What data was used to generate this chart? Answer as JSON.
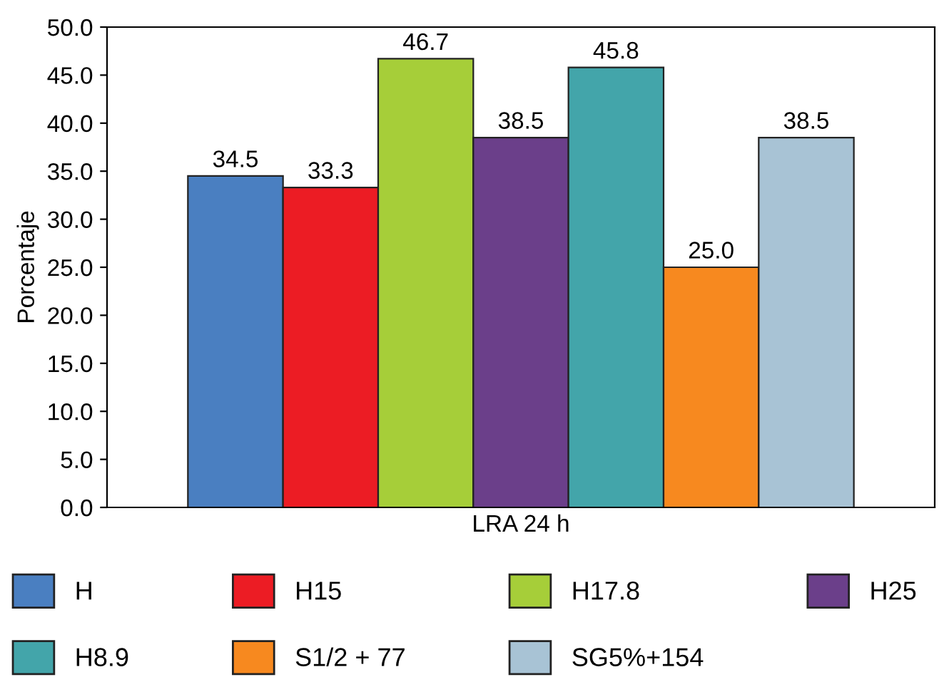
{
  "chart_data": {
    "type": "bar",
    "ylabel": "Porcentaje",
    "categories": [
      "LRA 24 h"
    ],
    "series": [
      {
        "name": "H",
        "color": "#4a7fc1",
        "values": [
          34.5
        ],
        "value_labels": [
          "34.5"
        ]
      },
      {
        "name": "H15",
        "color": "#ec1c24",
        "values": [
          33.3
        ],
        "value_labels": [
          "33.3"
        ]
      },
      {
        "name": "H17.8",
        "color": "#a6ce39",
        "values": [
          46.7
        ],
        "value_labels": [
          "46.7"
        ]
      },
      {
        "name": "H25",
        "color": "#6b3f8a",
        "values": [
          38.5
        ],
        "value_labels": [
          "38.5"
        ]
      },
      {
        "name": "H8.9",
        "color": "#43a5aa",
        "values": [
          45.8
        ],
        "value_labels": [
          "45.8"
        ]
      },
      {
        "name": "S1/2 + 77",
        "color": "#f7891f",
        "values": [
          25.0
        ],
        "value_labels": [
          "25.0"
        ]
      },
      {
        "name": "SG5%+154",
        "color": "#a8c3d5",
        "values": [
          38.5
        ],
        "value_labels": [
          "38.5"
        ]
      }
    ],
    "ylim": [
      0,
      50
    ],
    "yticks": [
      {
        "value": 0,
        "label": "0.0"
      },
      {
        "value": 5,
        "label": "5.0"
      },
      {
        "value": 10,
        "label": "10.0"
      },
      {
        "value": 15,
        "label": "15.0"
      },
      {
        "value": 20,
        "label": "20.0"
      },
      {
        "value": 25,
        "label": "25.0"
      },
      {
        "value": 30,
        "label": "30.0"
      },
      {
        "value": 35,
        "label": "35.0"
      },
      {
        "value": 40,
        "label": "40.0"
      },
      {
        "value": 45,
        "label": "45.0"
      },
      {
        "value": 50,
        "label": "50.0"
      }
    ],
    "grid": false,
    "legend": "bottom"
  }
}
